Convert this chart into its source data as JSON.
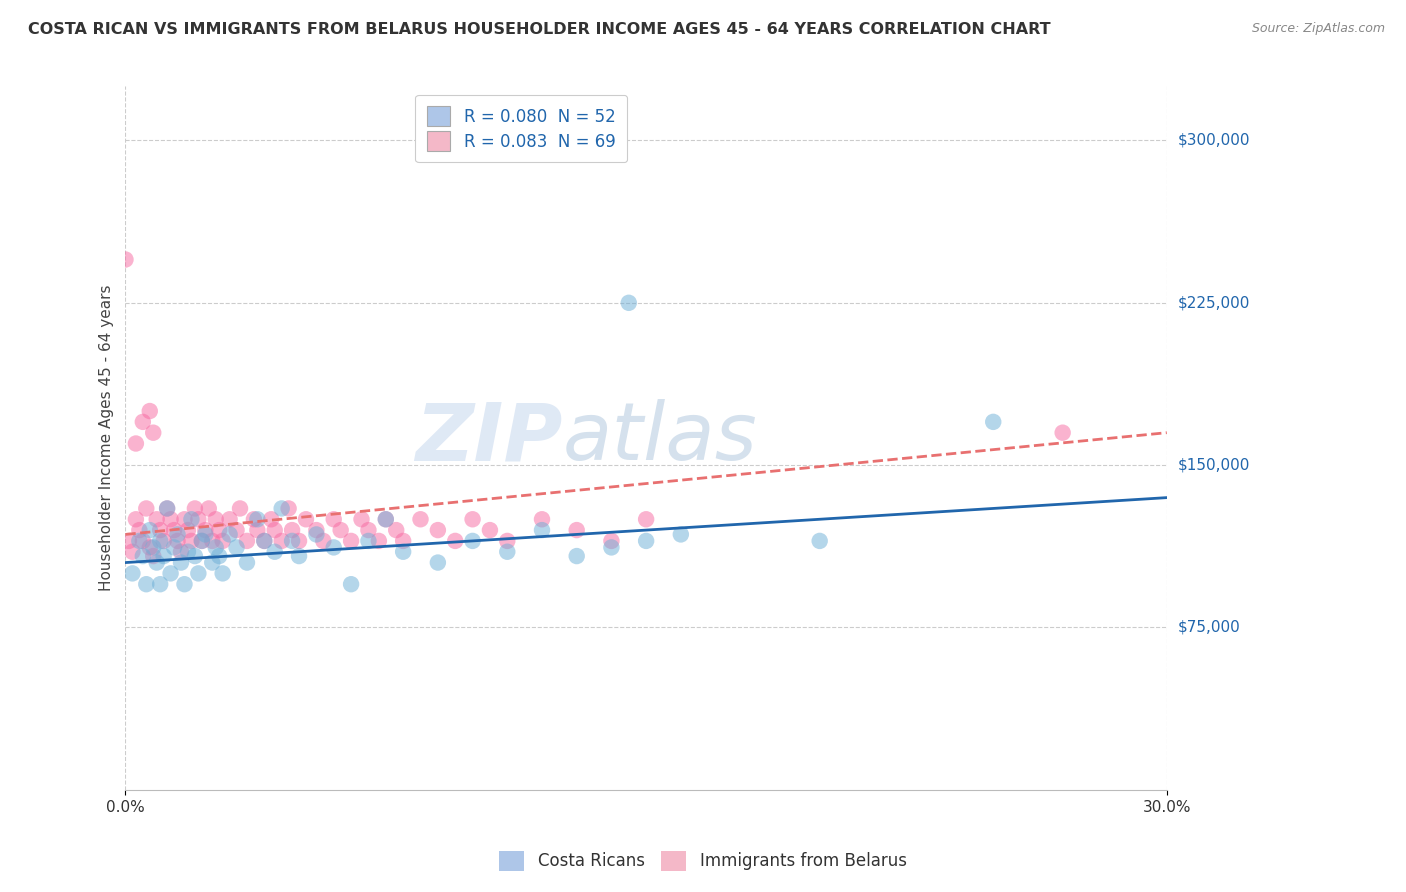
{
  "title": "COSTA RICAN VS IMMIGRANTS FROM BELARUS HOUSEHOLDER INCOME AGES 45 - 64 YEARS CORRELATION CHART",
  "source": "Source: ZipAtlas.com",
  "ylabel": "Householder Income Ages 45 - 64 years",
  "xlim": [
    0.0,
    0.3
  ],
  "ylim": [
    0,
    325000
  ],
  "ytick_labels": [
    "$75,000",
    "$150,000",
    "$225,000",
    "$300,000"
  ],
  "ytick_values": [
    75000,
    150000,
    225000,
    300000
  ],
  "watermark": "ZIPatlas",
  "legend_r1": "R = 0.080  N = 52",
  "legend_r2": "R = 0.083  N = 69",
  "legend_color1": "#aec6e8",
  "legend_color2": "#f4b8c8",
  "scatter_color1": "#6baed6",
  "scatter_color2": "#f768a1",
  "line_color1": "#2166ac",
  "line_color2": "#e87070",
  "background_color": "#ffffff",
  "grid_color": "#cccccc",
  "cr_x": [
    0.002,
    0.004,
    0.005,
    0.006,
    0.007,
    0.008,
    0.009,
    0.01,
    0.01,
    0.011,
    0.012,
    0.013,
    0.014,
    0.015,
    0.016,
    0.017,
    0.018,
    0.019,
    0.02,
    0.021,
    0.022,
    0.023,
    0.025,
    0.026,
    0.027,
    0.028,
    0.03,
    0.032,
    0.035,
    0.038,
    0.04,
    0.043,
    0.045,
    0.048,
    0.05,
    0.055,
    0.06,
    0.065,
    0.07,
    0.075,
    0.08,
    0.09,
    0.1,
    0.11,
    0.12,
    0.13,
    0.14,
    0.15,
    0.16,
    0.2,
    0.145,
    0.25
  ],
  "cr_y": [
    100000,
    115000,
    108000,
    95000,
    120000,
    112000,
    105000,
    95000,
    115000,
    108000,
    130000,
    100000,
    112000,
    118000,
    105000,
    95000,
    110000,
    125000,
    108000,
    100000,
    115000,
    118000,
    105000,
    112000,
    108000,
    100000,
    118000,
    112000,
    105000,
    125000,
    115000,
    110000,
    130000,
    115000,
    108000,
    118000,
    112000,
    95000,
    115000,
    125000,
    110000,
    105000,
    115000,
    110000,
    120000,
    108000,
    112000,
    115000,
    118000,
    115000,
    225000,
    170000
  ],
  "bel_x": [
    0.001,
    0.002,
    0.003,
    0.004,
    0.005,
    0.006,
    0.007,
    0.008,
    0.009,
    0.01,
    0.011,
    0.012,
    0.013,
    0.014,
    0.015,
    0.016,
    0.017,
    0.018,
    0.019,
    0.02,
    0.021,
    0.022,
    0.023,
    0.024,
    0.025,
    0.026,
    0.027,
    0.028,
    0.03,
    0.032,
    0.033,
    0.035,
    0.037,
    0.038,
    0.04,
    0.042,
    0.043,
    0.045,
    0.047,
    0.048,
    0.05,
    0.052,
    0.055,
    0.057,
    0.06,
    0.062,
    0.065,
    0.068,
    0.07,
    0.073,
    0.075,
    0.078,
    0.08,
    0.085,
    0.09,
    0.095,
    0.1,
    0.105,
    0.11,
    0.12,
    0.13,
    0.14,
    0.15,
    0.003,
    0.005,
    0.007,
    0.008,
    0.27,
    0.0
  ],
  "bel_y": [
    115000,
    110000,
    125000,
    120000,
    115000,
    130000,
    112000,
    108000,
    125000,
    120000,
    115000,
    130000,
    125000,
    120000,
    115000,
    110000,
    125000,
    120000,
    115000,
    130000,
    125000,
    115000,
    120000,
    130000,
    115000,
    125000,
    120000,
    115000,
    125000,
    120000,
    130000,
    115000,
    125000,
    120000,
    115000,
    125000,
    120000,
    115000,
    130000,
    120000,
    115000,
    125000,
    120000,
    115000,
    125000,
    120000,
    115000,
    125000,
    120000,
    115000,
    125000,
    120000,
    115000,
    125000,
    120000,
    115000,
    125000,
    120000,
    115000,
    125000,
    120000,
    115000,
    125000,
    160000,
    170000,
    175000,
    165000,
    165000,
    245000
  ]
}
